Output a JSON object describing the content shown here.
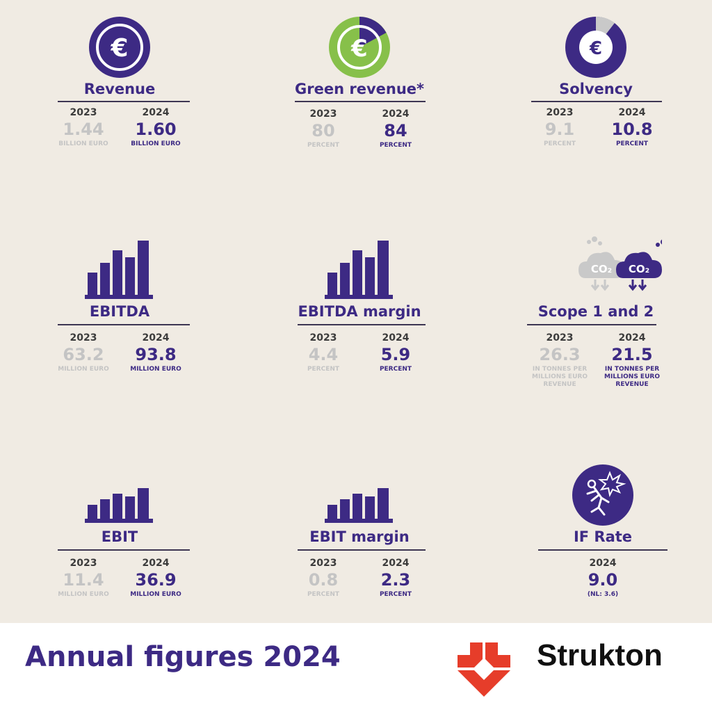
{
  "colors": {
    "purple": "#3d2a84",
    "green": "#87c04a",
    "gray": "#c4c4c4",
    "red": "#e63d2a"
  },
  "metrics": {
    "revenue": {
      "title": "Revenue",
      "y1": "2023",
      "y2": "2024",
      "v1": "1.44",
      "u1": "BILLION EURO",
      "v2": "1.60",
      "u2": "BILLION EURO",
      "icon": "euro-icon"
    },
    "green": {
      "title": "Green revenue*",
      "y1": "2023",
      "y2": "2024",
      "v1": "80",
      "u1": "PERCENT",
      "v2": "84",
      "u2": "PERCENT",
      "icon": "euro-green-icon",
      "fill": 0.84
    },
    "solvency": {
      "title": "Solvency",
      "y1": "2023",
      "y2": "2024",
      "v1": "9.1",
      "u1": "PERCENT",
      "v2": "10.8",
      "u2": "PERCENT",
      "icon": "euro-pie-icon",
      "fill": 0.108
    },
    "ebitda": {
      "title": "EBITDA",
      "y1": "2023",
      "y2": "2024",
      "v1": "63.2",
      "u1": "MILLION EURO",
      "v2": "93.8",
      "u2": "MILLION EURO",
      "icon": "bar-chart-icon"
    },
    "ebitda_margin": {
      "title": "EBITDA margin",
      "y1": "2023",
      "y2": "2024",
      "v1": "4.4",
      "u1": "PERCENT",
      "v2": "5.9",
      "u2": "PERCENT",
      "icon": "bar-chart-icon"
    },
    "scope": {
      "title": "Scope 1 and 2",
      "y1": "2023",
      "y2": "2024",
      "v1": "26.3",
      "u1": "IN TONNES PER MILLIONS EURO REVENUE",
      "v2": "21.5",
      "u2": "IN TONNES PER MILLIONS EURO REVENUE",
      "icon": "co2-cloud-icon",
      "co2": "CO2"
    },
    "ebit": {
      "title": "EBIT",
      "y1": "2023",
      "y2": "2024",
      "v1": "11.4",
      "u1": "MILLION EURO",
      "v2": "36.9",
      "u2": "MILLION EURO",
      "icon": "bar-chart-icon"
    },
    "ebit_margin": {
      "title": "EBIT margin",
      "y1": "2023",
      "y2": "2024",
      "v1": "0.8",
      "u1": "PERCENT",
      "v2": "2.3",
      "u2": "PERCENT",
      "icon": "bar-chart-icon"
    },
    "ifrate": {
      "title": "IF Rate",
      "y2": "2024",
      "v2": "9.0",
      "u2": "(NL: 3.6)",
      "icon": "injury-icon"
    }
  },
  "footer": {
    "title": "Annual figures 2024",
    "brand": "Strukton"
  }
}
